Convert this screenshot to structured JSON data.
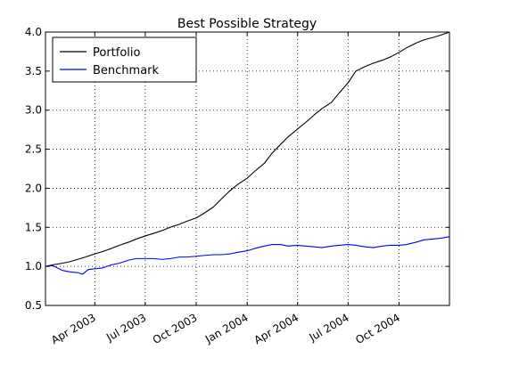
{
  "chart_data": {
    "type": "line",
    "title": "Best Possible Strategy",
    "xlabel": "",
    "ylabel": "",
    "x_range": [
      "2003-01-02",
      "2004-12-31"
    ],
    "ylim": [
      0.5,
      4.0
    ],
    "y_ticks": [
      0.5,
      1.0,
      1.5,
      2.0,
      2.5,
      3.0,
      3.5,
      4.0
    ],
    "y_tick_labels": [
      "0.5",
      "1.0",
      "1.5",
      "2.0",
      "2.5",
      "3.0",
      "3.5",
      "4.0"
    ],
    "x_ticks": [
      "2003-04-01",
      "2003-07-01",
      "2003-10-01",
      "2004-01-01",
      "2004-04-01",
      "2004-07-01",
      "2004-10-01"
    ],
    "x_tick_labels": [
      "Apr 2003",
      "Jul 2003",
      "Oct 2003",
      "Jan 2004",
      "Apr 2004",
      "Jul 2004",
      "Oct 2004"
    ],
    "grid": true,
    "legend_position": "top-left",
    "series": [
      {
        "name": "Portfolio",
        "color": "#000000",
        "points": [
          [
            "2003-01-02",
            1.0
          ],
          [
            "2003-01-15",
            1.02
          ],
          [
            "2003-02-01",
            1.04
          ],
          [
            "2003-02-15",
            1.06
          ],
          [
            "2003-03-01",
            1.09
          ],
          [
            "2003-03-15",
            1.12
          ],
          [
            "2003-04-01",
            1.16
          ],
          [
            "2003-04-15",
            1.19
          ],
          [
            "2003-05-01",
            1.23
          ],
          [
            "2003-05-15",
            1.27
          ],
          [
            "2003-06-01",
            1.31
          ],
          [
            "2003-06-15",
            1.35
          ],
          [
            "2003-07-01",
            1.39
          ],
          [
            "2003-07-15",
            1.42
          ],
          [
            "2003-08-01",
            1.46
          ],
          [
            "2003-08-15",
            1.5
          ],
          [
            "2003-09-01",
            1.54
          ],
          [
            "2003-09-15",
            1.58
          ],
          [
            "2003-10-01",
            1.62
          ],
          [
            "2003-10-15",
            1.68
          ],
          [
            "2003-11-01",
            1.76
          ],
          [
            "2003-11-15",
            1.86
          ],
          [
            "2003-12-01",
            1.97
          ],
          [
            "2003-12-15",
            2.05
          ],
          [
            "2004-01-01",
            2.13
          ],
          [
            "2004-01-15",
            2.22
          ],
          [
            "2004-02-01",
            2.32
          ],
          [
            "2004-02-15",
            2.45
          ],
          [
            "2004-03-01",
            2.56
          ],
          [
            "2004-03-15",
            2.66
          ],
          [
            "2004-04-01",
            2.76
          ],
          [
            "2004-04-15",
            2.84
          ],
          [
            "2004-05-01",
            2.94
          ],
          [
            "2004-05-15",
            3.02
          ],
          [
            "2004-06-01",
            3.1
          ],
          [
            "2004-06-15",
            3.22
          ],
          [
            "2004-07-01",
            3.35
          ],
          [
            "2004-07-15",
            3.5
          ],
          [
            "2004-08-01",
            3.56
          ],
          [
            "2004-08-15",
            3.6
          ],
          [
            "2004-09-01",
            3.64
          ],
          [
            "2004-09-15",
            3.68
          ],
          [
            "2004-10-01",
            3.74
          ],
          [
            "2004-10-15",
            3.8
          ],
          [
            "2004-11-01",
            3.86
          ],
          [
            "2004-11-15",
            3.9
          ],
          [
            "2004-12-01",
            3.93
          ],
          [
            "2004-12-15",
            3.96
          ],
          [
            "2004-12-31",
            4.0
          ]
        ]
      },
      {
        "name": "Benchmark",
        "color": "#0000ff",
        "points": [
          [
            "2003-01-02",
            1.0
          ],
          [
            "2003-01-15",
            1.01
          ],
          [
            "2003-02-01",
            0.95
          ],
          [
            "2003-02-15",
            0.93
          ],
          [
            "2003-03-01",
            0.92
          ],
          [
            "2003-03-10",
            0.9
          ],
          [
            "2003-03-20",
            0.96
          ],
          [
            "2003-04-01",
            0.97
          ],
          [
            "2003-04-15",
            0.98
          ],
          [
            "2003-05-01",
            1.02
          ],
          [
            "2003-05-15",
            1.04
          ],
          [
            "2003-06-01",
            1.08
          ],
          [
            "2003-06-15",
            1.1
          ],
          [
            "2003-07-01",
            1.1
          ],
          [
            "2003-07-15",
            1.1
          ],
          [
            "2003-08-01",
            1.09
          ],
          [
            "2003-08-15",
            1.1
          ],
          [
            "2003-09-01",
            1.12
          ],
          [
            "2003-09-15",
            1.12
          ],
          [
            "2003-10-01",
            1.13
          ],
          [
            "2003-10-15",
            1.14
          ],
          [
            "2003-11-01",
            1.15
          ],
          [
            "2003-11-15",
            1.15
          ],
          [
            "2003-12-01",
            1.16
          ],
          [
            "2003-12-15",
            1.18
          ],
          [
            "2004-01-01",
            1.2
          ],
          [
            "2004-01-15",
            1.23
          ],
          [
            "2004-02-01",
            1.26
          ],
          [
            "2004-02-15",
            1.28
          ],
          [
            "2004-03-01",
            1.28
          ],
          [
            "2004-03-15",
            1.26
          ],
          [
            "2004-04-01",
            1.27
          ],
          [
            "2004-04-15",
            1.26
          ],
          [
            "2004-05-01",
            1.25
          ],
          [
            "2004-05-15",
            1.24
          ],
          [
            "2004-06-01",
            1.26
          ],
          [
            "2004-06-15",
            1.27
          ],
          [
            "2004-07-01",
            1.28
          ],
          [
            "2004-07-15",
            1.27
          ],
          [
            "2004-08-01",
            1.25
          ],
          [
            "2004-08-15",
            1.24
          ],
          [
            "2004-09-01",
            1.26
          ],
          [
            "2004-09-15",
            1.27
          ],
          [
            "2004-10-01",
            1.27
          ],
          [
            "2004-10-15",
            1.28
          ],
          [
            "2004-11-01",
            1.31
          ],
          [
            "2004-11-15",
            1.34
          ],
          [
            "2004-12-01",
            1.35
          ],
          [
            "2004-12-15",
            1.36
          ],
          [
            "2004-12-31",
            1.38
          ]
        ]
      }
    ]
  }
}
